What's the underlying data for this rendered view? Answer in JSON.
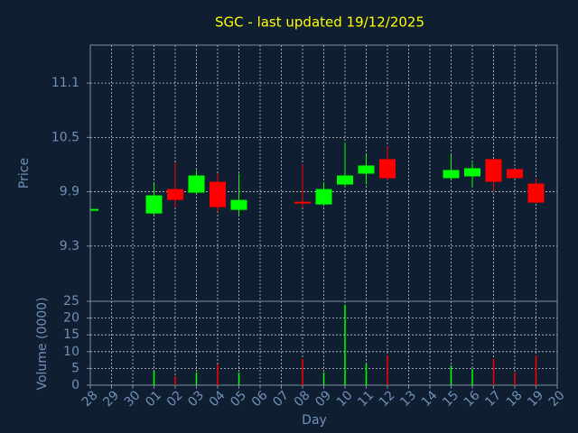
{
  "chart_data": [
    {
      "type": "candlestick",
      "title": "SGC - last updated 19/12/2025",
      "ylabel": "Price",
      "open": [
        9.71,
        null,
        null,
        9.66,
        9.93,
        9.89,
        10.01,
        9.7,
        null,
        null,
        9.79,
        9.76,
        9.98,
        10.1,
        10.26,
        null,
        null,
        10.05,
        10.07,
        10.26,
        10.15,
        9.99,
        null
      ],
      "high": [
        9.71,
        null,
        null,
        9.99,
        10.22,
        10.14,
        10.1,
        10.1,
        null,
        null,
        10.2,
        10.0,
        10.44,
        10.31,
        10.4,
        null,
        null,
        10.31,
        10.22,
        10.26,
        10.15,
        10.05,
        null
      ],
      "low": [
        9.71,
        null,
        null,
        9.64,
        9.73,
        9.87,
        9.68,
        9.64,
        null,
        null,
        9.73,
        9.74,
        9.95,
        9.98,
        10.03,
        null,
        null,
        10.03,
        9.96,
        9.91,
        10.05,
        9.78,
        null
      ],
      "close": [
        9.71,
        null,
        null,
        9.86,
        9.81,
        10.08,
        9.73,
        9.81,
        null,
        null,
        9.77,
        9.93,
        10.08,
        10.19,
        10.05,
        null,
        null,
        10.14,
        10.16,
        10.01,
        10.05,
        9.78,
        null
      ],
      "up_color": "#00ff00",
      "down_color": "#ff0000",
      "ylim": [
        8.69,
        11.52
      ],
      "yticks": [
        9.3,
        9.9,
        10.5,
        11.1
      ],
      "grid": true
    },
    {
      "type": "bar",
      "ylabel": "Volume (0000)",
      "xlabel": "Day",
      "categories": [
        "28",
        "29",
        "30",
        "01",
        "02",
        "03",
        "04",
        "05",
        "06",
        "07",
        "08",
        "09",
        "10",
        "11",
        "12",
        "13",
        "14",
        "15",
        "16",
        "17",
        "18",
        "19",
        "20"
      ],
      "values": [
        null,
        null,
        null,
        4.3,
        2.7,
        3.8,
        6.2,
        3.8,
        null,
        null,
        7.8,
        3.8,
        24,
        6.5,
        8.9,
        null,
        null,
        5.9,
        4.8,
        7.8,
        3.8,
        8.9,
        null
      ],
      "ylim": [
        0,
        25
      ],
      "yticks": [
        0,
        5,
        10,
        15,
        20,
        25
      ],
      "grid": true
    }
  ]
}
